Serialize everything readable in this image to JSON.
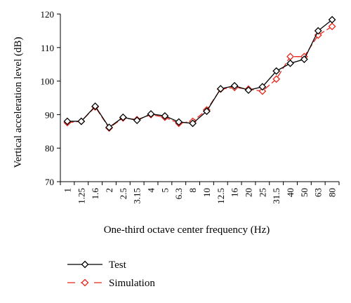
{
  "chart_data": {
    "type": "line",
    "xlabel": "One-third octave center frequency (Hz)",
    "ylabel": "Vertical acceleration level (dB)",
    "ylim": [
      70,
      120
    ],
    "yticks": [
      "70",
      "80",
      "90",
      "100",
      "110",
      "120"
    ],
    "categories": [
      "1",
      "1.25",
      "1.6",
      "2",
      "2.5",
      "3.15",
      "4",
      "5",
      "6.3",
      "8",
      "10",
      "12.5",
      "16",
      "20",
      "25",
      "31.5",
      "40",
      "50",
      "63",
      "80"
    ],
    "grid": false,
    "legend_position": "bottom-left",
    "series": [
      {
        "name": "Test",
        "color": "#000000",
        "line_style": "solid",
        "marker": "diamond",
        "values": [
          88.0,
          88.0,
          92.5,
          86.2,
          89.2,
          88.3,
          90.2,
          89.6,
          87.8,
          87.4,
          91.0,
          97.7,
          98.6,
          97.3,
          98.3,
          103.0,
          105.3,
          106.5,
          115.0,
          118.3
        ]
      },
      {
        "name": "Simulation",
        "color": "#e8251a",
        "line_style": "dashed",
        "marker": "diamond",
        "values": [
          87.6,
          88.0,
          92.3,
          86.0,
          89.0,
          88.5,
          90.0,
          89.2,
          87.4,
          88.0,
          91.4,
          97.6,
          98.1,
          97.6,
          97.0,
          100.6,
          107.3,
          107.3,
          113.7,
          116.3
        ]
      }
    ]
  }
}
